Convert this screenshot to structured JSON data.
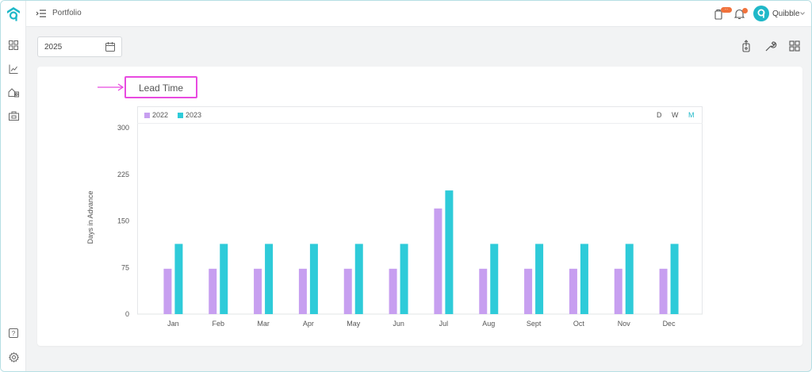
{
  "topbar": {
    "breadcrumb": "Portfolio",
    "user_name": "Quibble",
    "tasks_badge": "···"
  },
  "toolbar": {
    "year": "2025"
  },
  "icons": {
    "sidebar": [
      "dashboard-icon",
      "analytics-icon",
      "properties-icon",
      "calendar-briefcase-icon"
    ],
    "sidebar_bottom": [
      "help-icon",
      "settings-icon"
    ],
    "toolbar": [
      "export-icon",
      "wrench-icon",
      "grid-layout-icon"
    ]
  },
  "chart": {
    "title": "Lead Time",
    "periods": [
      "D",
      "W",
      "M"
    ],
    "active_period": "M"
  },
  "colors": {
    "accent": "#1fb8c8",
    "series_2022": "#c79ff0",
    "series_2023": "#2ecbd9",
    "highlight": "#e84ae0"
  },
  "chart_data": {
    "type": "bar",
    "title": "Lead Time",
    "ylabel": "Days in Advance",
    "xlabel": "",
    "ylim": [
      0,
      300
    ],
    "yticks": [
      0,
      75,
      150,
      225,
      300
    ],
    "categories": [
      "Jan",
      "Feb",
      "Mar",
      "Apr",
      "May",
      "Jun",
      "Jul",
      "Aug",
      "Sept",
      "Oct",
      "Nov",
      "Dec"
    ],
    "series": [
      {
        "name": "2022",
        "values": [
          73,
          73,
          73,
          73,
          73,
          73,
          170,
          73,
          73,
          73,
          73,
          73
        ]
      },
      {
        "name": "2023",
        "values": [
          113,
          113,
          113,
          113,
          113,
          113,
          199,
          113,
          113,
          113,
          113,
          113
        ]
      }
    ],
    "legend": "top-left",
    "grid": false
  }
}
